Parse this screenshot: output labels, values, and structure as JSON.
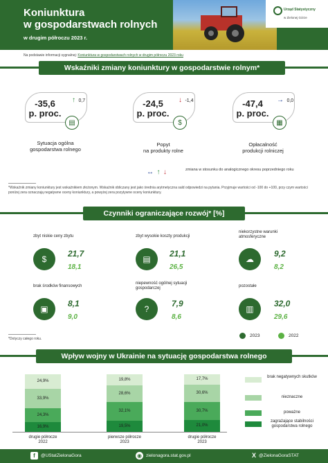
{
  "header": {
    "title_line1": "Koniunktura",
    "title_line2": "w gospodarstwach rolnych",
    "subtitle": "w drugim półroczu 2023 r.",
    "logo_line1": "Urząd Statystyczny",
    "logo_line2": "w Zielonej Górze"
  },
  "source": {
    "prefix": "Na podstawie informacji sygnalnej:",
    "link": "Koniunktura w gospodarstwach rolnych w drugim półroczu 2023 roku"
  },
  "indicators": {
    "section_title": "Wskaźniki zmiany koniunktury w gospodarstwie rolnym*",
    "items": [
      {
        "value": "-35,6",
        "unit": "p. proc.",
        "change": "0,7",
        "direction": "up",
        "label_line1": "Sytuacja ogólna",
        "label_line2": "gospodarstwa rolnego",
        "icon": "presentation-chart-icon"
      },
      {
        "value": "-24,5",
        "unit": "p. proc.",
        "change": "-1,4",
        "direction": "down",
        "label_line1": "Popyt",
        "label_line2": "na produkty rolne",
        "icon": "money-hand-icon"
      },
      {
        "value": "-47,4",
        "unit": "p. proc.",
        "change": "0,0",
        "direction": "flat",
        "label_line1": "Opłacalność",
        "label_line2": "produkcji rolniczej",
        "icon": "calculator-coins-icon"
      }
    ],
    "legend_text": "zmiana w stosunku do analogicznego okresu poprzedniego roku",
    "footnote": "*Wskaźnik zmiany koniunktury jest wskaźnikiem złożonym. Wskaźnik obliczany jest jako średnia arytmetyczna sald odpowiedzi na pytania. Przyjmuje wartości od -100 do +100, przy czym wartości poniżej zera oznaczają negatywne oceny koniunktury, a powyżej zera pozytywne oceny koniunktury."
  },
  "constraints": {
    "section_title": "Czynniki ograniczające rozwój* [%]",
    "items": [
      {
        "label": "zbyt niskie ceny zbytu",
        "v2023": "21,7",
        "v2022": "18,1",
        "icon": "money-bag-icon"
      },
      {
        "label": "zbyt wysokie koszty produkcji",
        "v2023": "21,1",
        "v2022": "26,5",
        "icon": "costs-chart-icon"
      },
      {
        "label": "niekorzystne warunki atmosferyczne",
        "v2023": "9,2",
        "v2022": "8,2",
        "icon": "weather-icon"
      },
      {
        "label": "brak środków finansowych",
        "v2023": "8,1",
        "v2022": "9,0",
        "icon": "empty-wallet-icon"
      },
      {
        "label": "niepewność ogólnej sytuacji gospodarczej",
        "v2023": "7,9",
        "v2022": "8,6",
        "icon": "uncertainty-icon"
      },
      {
        "label": "pozostałe",
        "v2023": "32,0",
        "v2022": "29,6",
        "icon": "others-chart-icon"
      }
    ],
    "legend_2023": "2023",
    "legend_2022": "2022",
    "color_2023": "#2d6a2f",
    "color_2022": "#5cb244",
    "footnote": "*Dotyczy całego roku."
  },
  "war": {
    "section_title": "Wpływ wojny w Ukrainie na sytuację gospodarstwa rolnego"
  },
  "chart_data": {
    "type": "bar",
    "stacked": true,
    "categories": [
      "drugie półrocze 2022",
      "pierwsze półrocze 2023",
      "drugie półrocze 2023"
    ],
    "category_labels": [
      [
        "drugie półrocze",
        "2022"
      ],
      [
        "pierwsze półrocze",
        "2023"
      ],
      [
        "drugie półrocze",
        "2023"
      ]
    ],
    "series": [
      {
        "name": "zagrażające stabilności gospodarstwa rolnego",
        "values": [
          16.9,
          19.5,
          21.0
        ],
        "labels": [
          "16,9%",
          "19,5%",
          "21,0%"
        ],
        "color": "#1e8a3c"
      },
      {
        "name": "poważne",
        "values": [
          24.3,
          32.1,
          30.7
        ],
        "labels": [
          "24,3%",
          "32,1%",
          "30,7%"
        ],
        "color": "#4aaa5a"
      },
      {
        "name": "nieznaczne",
        "values": [
          33.9,
          28.6,
          30.6
        ],
        "labels": [
          "33,9%",
          "28,6%",
          "30,6%"
        ],
        "color": "#a8d5a6"
      },
      {
        "name": "brak negatywnych skutków",
        "values": [
          24.9,
          19.8,
          17.7
        ],
        "labels": [
          "24,9%",
          "19,8%",
          "17,7%"
        ],
        "color": "#d8ecd2"
      }
    ],
    "legend_order": [
      "brak negatywnych skutków",
      "nieznaczne",
      "poważne",
      "zagrażające stabilności gospodarstwa rolnego"
    ],
    "legend_position": "right"
  },
  "footer": {
    "facebook": "@UStatZielonaGora",
    "website": "zielonagora.stat.gov.pl",
    "x_handle": "@ZielonaGoraSTAT"
  }
}
